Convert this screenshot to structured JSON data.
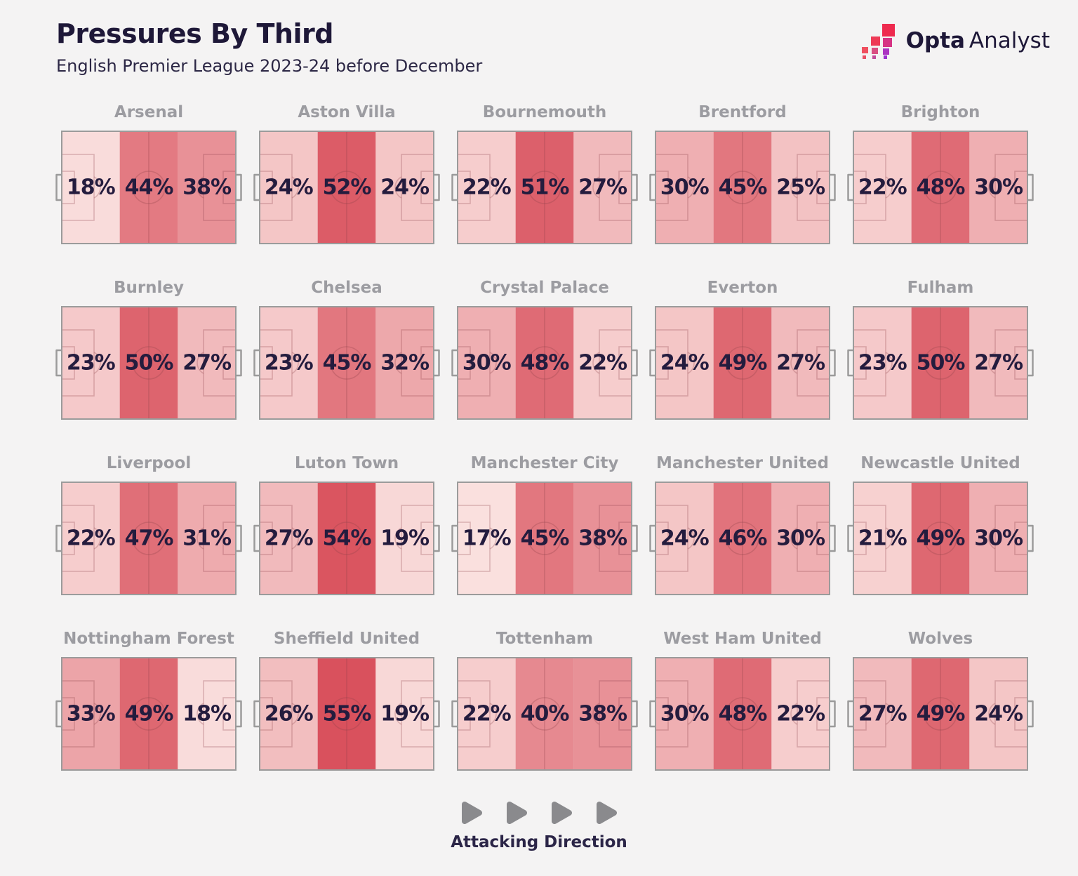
{
  "header": {
    "title": "Pressures By Third",
    "subtitle": "English Premier League 2023-24 before December",
    "brand_bold": "Opta",
    "brand_light": "Analyst",
    "logo_colors": [
      "#ee2a4e",
      "#ee3a56",
      "#d63384",
      "#ef4f5f",
      "#d94f83",
      "#ab34c2",
      "#e94e64",
      "#c14b9b",
      "#9b30d0"
    ]
  },
  "footer": {
    "label": "Attacking Direction",
    "arrow_count": 4,
    "arrow_color": "#8a8a8d"
  },
  "colors": {
    "background": "#f4f3f3",
    "title_text": "#1e1838",
    "team_label_text": "#9c9ca1",
    "value_text": "#241c3e",
    "pitch_border": "#9b9b9b",
    "pitch_lines": "rgba(141,64,73,0.28)",
    "scale_min_color": "#fae0de",
    "scale_max_color": "#d9515d",
    "scale_min_value": 17,
    "scale_max_value": 55
  },
  "chart_data": {
    "type": "heatmap",
    "title": "Pressures By Third",
    "subtitle": "English Premier League 2023-24 before December",
    "unit": "%",
    "grid": {
      "columns": 5,
      "rows": 4
    },
    "attacking_direction": "left-to-right",
    "teams": [
      {
        "name": "Arsenal",
        "values": [
          18,
          44,
          38
        ]
      },
      {
        "name": "Aston Villa",
        "values": [
          24,
          52,
          24
        ]
      },
      {
        "name": "Bournemouth",
        "values": [
          22,
          51,
          27
        ]
      },
      {
        "name": "Brentford",
        "values": [
          30,
          45,
          25
        ]
      },
      {
        "name": "Brighton",
        "values": [
          22,
          48,
          30
        ]
      },
      {
        "name": "Burnley",
        "values": [
          23,
          50,
          27
        ]
      },
      {
        "name": "Chelsea",
        "values": [
          23,
          45,
          32
        ]
      },
      {
        "name": "Crystal Palace",
        "values": [
          30,
          48,
          22
        ]
      },
      {
        "name": "Everton",
        "values": [
          24,
          49,
          27
        ]
      },
      {
        "name": "Fulham",
        "values": [
          23,
          50,
          27
        ]
      },
      {
        "name": "Liverpool",
        "values": [
          22,
          47,
          31
        ]
      },
      {
        "name": "Luton Town",
        "values": [
          27,
          54,
          19
        ]
      },
      {
        "name": "Manchester City",
        "values": [
          17,
          45,
          38
        ]
      },
      {
        "name": "Manchester United",
        "values": [
          24,
          46,
          30
        ]
      },
      {
        "name": "Newcastle United",
        "values": [
          21,
          49,
          30
        ]
      },
      {
        "name": "Nottingham Forest",
        "values": [
          33,
          49,
          18
        ]
      },
      {
        "name": "Sheffield United",
        "values": [
          26,
          55,
          19
        ]
      },
      {
        "name": "Tottenham",
        "values": [
          22,
          40,
          38
        ]
      },
      {
        "name": "West Ham United",
        "values": [
          30,
          48,
          22
        ]
      },
      {
        "name": "Wolves",
        "values": [
          27,
          49,
          24
        ]
      }
    ]
  }
}
